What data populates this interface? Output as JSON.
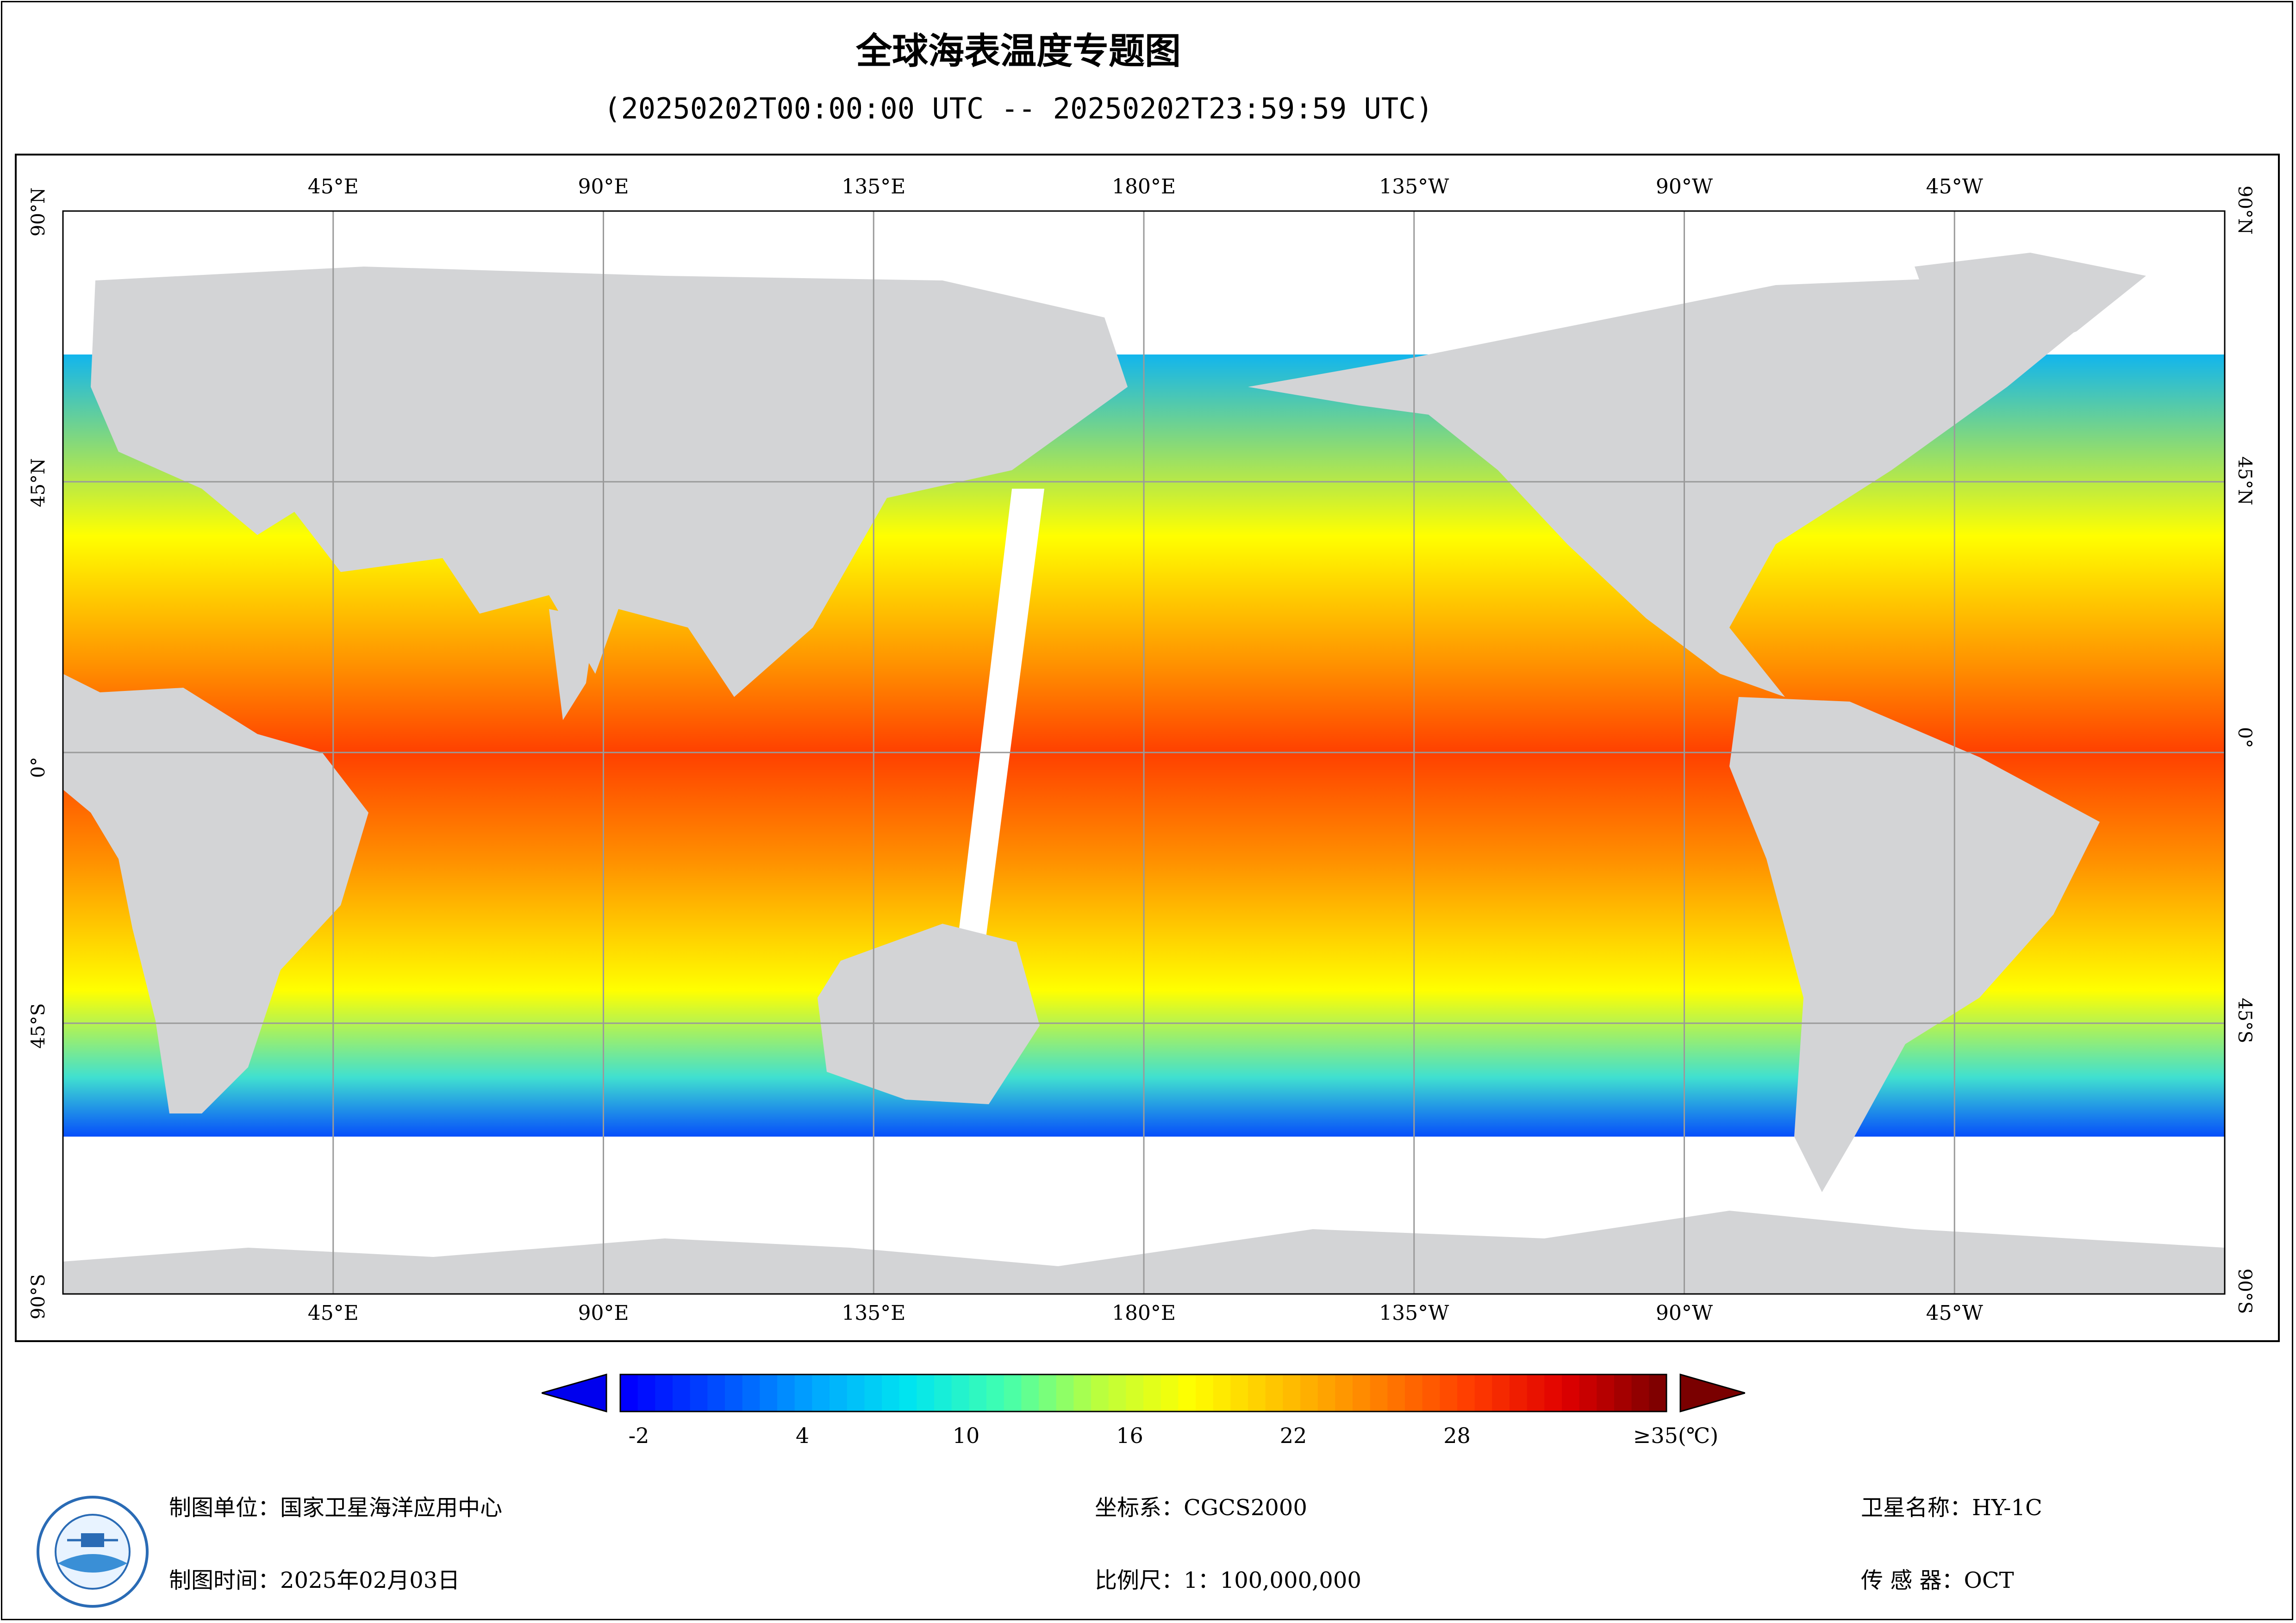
{
  "title": "全球海表温度专题图",
  "time_range": "(20250202T00:00:00 UTC -- 20250202T23:59:59 UTC)",
  "map": {
    "lon_labels_top": [
      "45°E",
      "90°E",
      "135°E",
      "180°E",
      "135°W",
      "90°W",
      "45°W"
    ],
    "lon_labels_bottom": [
      "45°E",
      "90°E",
      "135°E",
      "180°E",
      "135°W",
      "90°W",
      "45°W"
    ],
    "lat_labels": [
      "90°N",
      "45°N",
      "0°",
      "45°S",
      "90°S"
    ],
    "colors": {
      "land": "#d3d4d6",
      "no_data": "#ffffff",
      "grid": "#9a9a9a"
    }
  },
  "colorbar": {
    "tick_labels": [
      "-2",
      "4",
      "10",
      "16",
      "22",
      "28",
      "≥35(℃)"
    ],
    "min": -2,
    "max": 35,
    "unit": "℃",
    "colors": [
      "#0000ff",
      "#0050ff",
      "#00a8ff",
      "#00e5f0",
      "#40ffb0",
      "#b8ff40",
      "#ffff00",
      "#ffc000",
      "#ff8000",
      "#ff3c00",
      "#e00000",
      "#800000"
    ]
  },
  "footer": {
    "org_label": "制图单位：",
    "org_value": "国家卫星海洋应用中心",
    "time_label": "制图时间：",
    "time_value": "2025年02月03日",
    "crs_label": "坐标系：",
    "crs_value": "CGCS2000",
    "scale_label": "比例尺：",
    "scale_value": "1：100,000,000",
    "satellite_label": "卫星名称：",
    "satellite_value": "HY-1C",
    "sensor_label": "传 感 器：",
    "sensor_value": "OCT"
  }
}
